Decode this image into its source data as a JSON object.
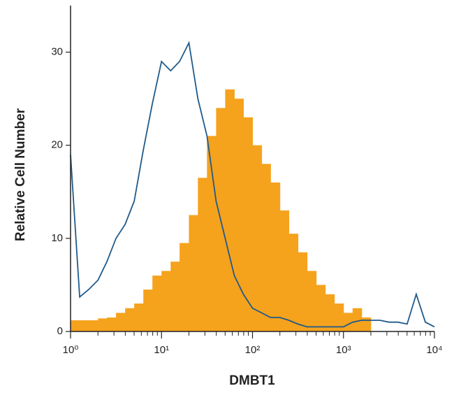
{
  "chart_data": {
    "type": "histogram",
    "xlabel": "DMBT1",
    "ylabel": "Relative Cell Number",
    "xscale": "log",
    "xlim": [
      1,
      10000
    ],
    "xticks": [
      {
        "value": 1,
        "label": "10⁰"
      },
      {
        "value": 10,
        "label": "10¹"
      },
      {
        "value": 100,
        "label": "10²"
      },
      {
        "value": 1000,
        "label": "10³"
      },
      {
        "value": 10000,
        "label": "10⁴"
      }
    ],
    "ylim": [
      0,
      35
    ],
    "yticks": [
      0,
      10,
      20,
      30
    ],
    "x": [
      1,
      1.26,
      1.58,
      2,
      2.51,
      3.16,
      3.98,
      5.01,
      6.31,
      7.94,
      10,
      12.6,
      15.8,
      20,
      25.1,
      31.6,
      39.8,
      50.1,
      63.1,
      79.4,
      100,
      126,
      158,
      200,
      251,
      316,
      398,
      501,
      631,
      794,
      1000,
      1259,
      1585,
      1995,
      2512,
      3162,
      3981,
      5012,
      6310,
      7943,
      10000
    ],
    "series": [
      {
        "color": "#f5a21d",
        "style": "filled",
        "values": [
          1.2,
          1.2,
          1.2,
          1.4,
          1.5,
          2,
          2.5,
          3,
          4.5,
          6,
          6.5,
          7.5,
          9.5,
          12.5,
          16.5,
          21,
          24,
          26,
          25,
          23,
          20,
          18,
          16,
          13,
          10.5,
          8.5,
          6.5,
          5,
          4,
          3,
          2,
          2.5,
          1.5,
          null,
          null,
          null,
          null,
          null,
          null,
          null,
          null
        ]
      },
      {
        "color": "#1f5a8a",
        "style": "outline",
        "values": [
          19,
          3.7,
          4.5,
          5.5,
          7.5,
          10,
          11.5,
          14,
          19.5,
          24.5,
          29,
          28,
          29,
          31,
          25,
          21,
          14,
          10,
          6,
          4,
          2.5,
          2,
          1.5,
          1.5,
          1.2,
          0.8,
          0.5,
          0.5,
          0.5,
          0.5,
          0.5,
          1,
          1.2,
          1.2,
          1.2,
          1,
          1,
          0.8,
          4,
          1,
          0.5
        ]
      }
    ]
  }
}
